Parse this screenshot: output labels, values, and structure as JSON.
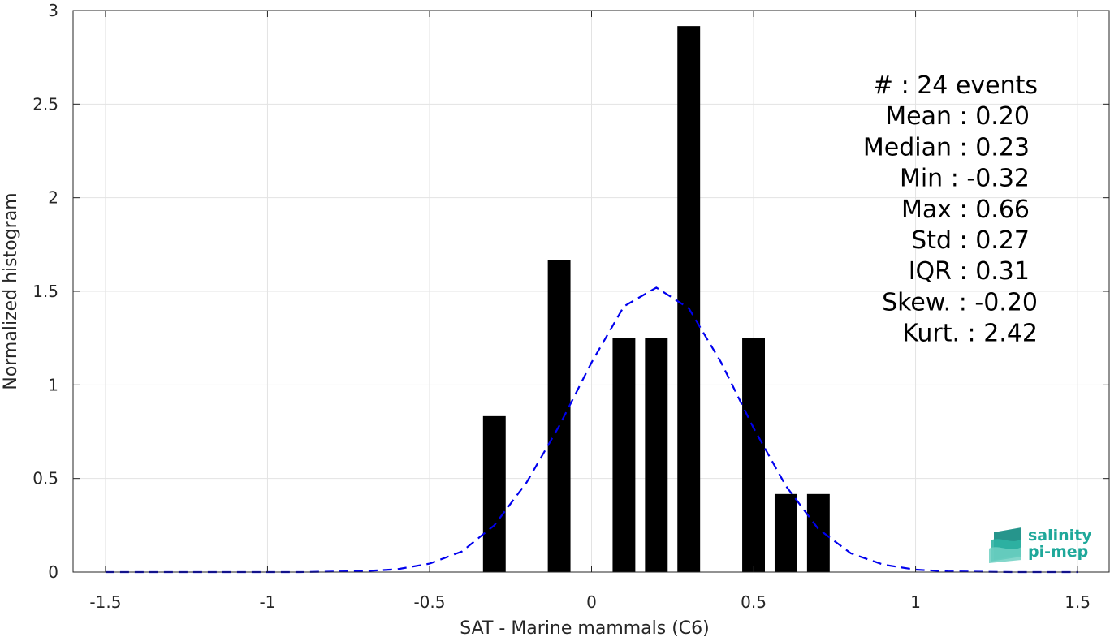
{
  "chart_data": {
    "type": "bar",
    "title": "",
    "xlabel": "SAT - Marine mammals (C6)",
    "ylabel": "Normalized histogram",
    "xlim": [
      -1.6,
      1.6
    ],
    "ylim": [
      0,
      3
    ],
    "xticks": [
      -1.5,
      -1,
      -0.5,
      0,
      0.5,
      1,
      1.5
    ],
    "xtick_labels": [
      "-1.5",
      "-1",
      "-0.5",
      "0",
      "0.5",
      "1",
      "1.5"
    ],
    "yticks": [
      0,
      0.5,
      1,
      1.5,
      2,
      2.5,
      3
    ],
    "ytick_labels": [
      "0",
      "0.5",
      "1",
      "1.5",
      "2",
      "2.5",
      "3"
    ],
    "grid": true,
    "bar_color": "#000000",
    "bars": [
      {
        "x": -0.3,
        "value": 0.833
      },
      {
        "x": -0.1,
        "value": 1.667
      },
      {
        "x": 0.1,
        "value": 1.25
      },
      {
        "x": 0.2,
        "value": 1.25
      },
      {
        "x": 0.3,
        "value": 2.917
      },
      {
        "x": 0.5,
        "value": 1.25
      },
      {
        "x": 0.6,
        "value": 0.417
      },
      {
        "x": 0.7,
        "value": 0.417
      }
    ],
    "bar_width": 0.07,
    "curve": {
      "style": "dashed",
      "color": "#0000ee",
      "points": [
        [
          -1.5,
          0.0
        ],
        [
          -1.3,
          0.0
        ],
        [
          -1.1,
          0.0
        ],
        [
          -0.9,
          0.0
        ],
        [
          -0.7,
          0.005
        ],
        [
          -0.6,
          0.015
        ],
        [
          -0.5,
          0.045
        ],
        [
          -0.4,
          0.11
        ],
        [
          -0.3,
          0.25
        ],
        [
          -0.2,
          0.48
        ],
        [
          -0.1,
          0.78
        ],
        [
          0.0,
          1.12
        ],
        [
          0.1,
          1.42
        ],
        [
          0.2,
          1.52
        ],
        [
          0.3,
          1.41
        ],
        [
          0.4,
          1.12
        ],
        [
          0.5,
          0.77
        ],
        [
          0.6,
          0.46
        ],
        [
          0.7,
          0.23
        ],
        [
          0.8,
          0.1
        ],
        [
          0.9,
          0.04
        ],
        [
          1.0,
          0.013
        ],
        [
          1.1,
          0.004
        ],
        [
          1.3,
          0.0
        ],
        [
          1.5,
          0.0
        ]
      ]
    },
    "stats": [
      "#  : 24 events",
      "Mean : 0.20",
      "Median : 0.23",
      "Min : -0.32",
      "Max : 0.66",
      "Std : 0.27",
      "IQR : 0.31",
      "Skew. : -0.20",
      "Kurt. : 2.42"
    ]
  },
  "logo": {
    "line1": "salinity",
    "line2": "pi-mep",
    "color": "#1fa89a"
  }
}
